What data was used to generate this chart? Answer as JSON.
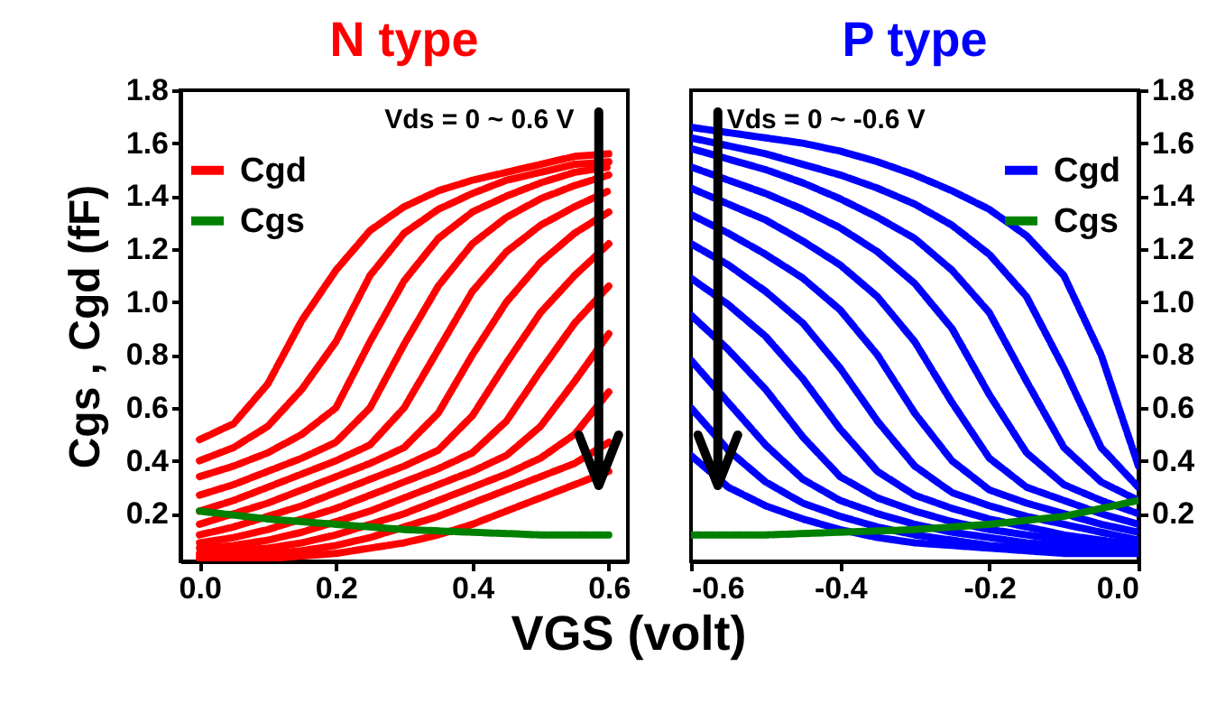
{
  "chart_data": [
    {
      "type": "line",
      "title": "N type",
      "xlabel": "VGS (volt)",
      "ylabel": "Cgs , Cgd (fF)",
      "annotations": [
        "Vds =  0 ~ 0.6 V"
      ],
      "legend": "top left",
      "line_style": "dashed",
      "xlim": [
        -0.028,
        0.628
      ],
      "ylim": [
        0.02,
        1.8
      ],
      "xticks": [
        {
          "value": 0,
          "label": "0.0"
        },
        0.2,
        0.4,
        0.6
      ],
      "yticks": [
        0.2,
        0.4,
        0.6,
        0.8,
        {
          "value": 1,
          "label": "1.0"
        },
        1.2,
        1.4,
        1.6,
        1.8
      ],
      "x": [
        0,
        0.05,
        0.1,
        0.15,
        0.2,
        0.25,
        0.3,
        0.35,
        0.4,
        0.45,
        0.5,
        0.55,
        0.6
      ],
      "series": [
        {
          "name": "Cgd",
          "color": "#ff0000",
          "values": [
            0.48,
            0.54,
            0.69,
            0.93,
            1.12,
            1.27,
            1.36,
            1.42,
            1.46,
            1.49,
            1.52,
            1.55,
            1.56
          ]
        },
        {
          "color": "#ff0000",
          "values": [
            0.4,
            0.45,
            0.53,
            0.67,
            0.85,
            1.1,
            1.26,
            1.35,
            1.41,
            1.46,
            1.49,
            1.52,
            1.53
          ]
        },
        {
          "color": "#ff0000",
          "values": [
            0.34,
            0.38,
            0.43,
            0.5,
            0.6,
            0.85,
            1.08,
            1.24,
            1.34,
            1.4,
            1.45,
            1.49,
            1.51
          ]
        },
        {
          "color": "#ff0000",
          "values": [
            0.27,
            0.31,
            0.36,
            0.41,
            0.47,
            0.6,
            0.84,
            1.06,
            1.22,
            1.32,
            1.39,
            1.44,
            1.48
          ]
        },
        {
          "color": "#ff0000",
          "values": [
            0.21,
            0.25,
            0.3,
            0.35,
            0.4,
            0.46,
            0.6,
            0.82,
            1.04,
            1.19,
            1.29,
            1.36,
            1.42
          ]
        },
        {
          "color": "#ff0000",
          "values": [
            0.16,
            0.2,
            0.24,
            0.29,
            0.34,
            0.39,
            0.45,
            0.58,
            0.8,
            1.0,
            1.15,
            1.26,
            1.34
          ]
        },
        {
          "color": "#ff0000",
          "values": [
            0.12,
            0.15,
            0.19,
            0.23,
            0.28,
            0.33,
            0.38,
            0.44,
            0.57,
            0.77,
            0.96,
            1.1,
            1.22
          ]
        },
        {
          "color": "#ff0000",
          "values": [
            0.09,
            0.11,
            0.14,
            0.18,
            0.22,
            0.27,
            0.32,
            0.37,
            0.43,
            0.55,
            0.74,
            0.92,
            1.06
          ]
        },
        {
          "color": "#ff0000",
          "values": [
            0.07,
            0.08,
            0.1,
            0.13,
            0.17,
            0.21,
            0.26,
            0.31,
            0.36,
            0.42,
            0.53,
            0.7,
            0.88
          ]
        },
        {
          "color": "#ff0000",
          "values": [
            0.05,
            0.06,
            0.07,
            0.09,
            0.12,
            0.16,
            0.2,
            0.25,
            0.3,
            0.35,
            0.41,
            0.5,
            0.66
          ]
        },
        {
          "color": "#ff0000",
          "values": [
            0.04,
            0.04,
            0.05,
            0.06,
            0.08,
            0.11,
            0.15,
            0.19,
            0.24,
            0.29,
            0.34,
            0.39,
            0.47
          ]
        },
        {
          "color": "#ff0000",
          "values": [
            0.03,
            0.03,
            0.03,
            0.04,
            0.05,
            0.07,
            0.09,
            0.12,
            0.16,
            0.21,
            0.26,
            0.31,
            0.36
          ]
        },
        {
          "name": "Cgs",
          "color": "#008000",
          "x": [
            0,
            0.1,
            0.2,
            0.3,
            0.4,
            0.5,
            0.6
          ],
          "values": [
            0.21,
            0.18,
            0.16,
            0.14,
            0.13,
            0.12,
            0.12
          ]
        }
      ]
    },
    {
      "type": "line",
      "title": "P type",
      "annotations": [
        "Vds =  0 ~ -0.6 V"
      ],
      "legend": "top right",
      "line_style": "dashed",
      "xlim": [
        -0.6,
        0.0
      ],
      "ylim": [
        0.02,
        1.8
      ],
      "xticks": [
        -0.6,
        -0.4,
        -0.2,
        {
          "value": 0,
          "label": "0.0"
        }
      ],
      "yticks": [
        0.2,
        0.4,
        0.6,
        0.8,
        {
          "value": 1,
          "label": "1.0"
        },
        1.2,
        1.4,
        1.6,
        1.8
      ],
      "x": [
        -0.6,
        -0.55,
        -0.5,
        -0.45,
        -0.4,
        -0.35,
        -0.3,
        -0.25,
        -0.2,
        -0.15,
        -0.1,
        -0.05,
        0
      ],
      "series": [
        {
          "name": "Cgd",
          "color": "#0000ff",
          "values": [
            1.66,
            1.64,
            1.62,
            1.6,
            1.57,
            1.53,
            1.48,
            1.42,
            1.35,
            1.25,
            1.1,
            0.8,
            0.38
          ]
        },
        {
          "color": "#0000ff",
          "values": [
            1.62,
            1.59,
            1.56,
            1.52,
            1.48,
            1.43,
            1.37,
            1.29,
            1.18,
            1.02,
            0.75,
            0.45,
            0.3
          ]
        },
        {
          "color": "#0000ff",
          "values": [
            1.58,
            1.54,
            1.5,
            1.45,
            1.39,
            1.32,
            1.24,
            1.12,
            0.96,
            0.7,
            0.45,
            0.32,
            0.25
          ]
        },
        {
          "color": "#0000ff",
          "values": [
            1.51,
            1.46,
            1.41,
            1.35,
            1.28,
            1.19,
            1.07,
            0.9,
            0.65,
            0.43,
            0.31,
            0.25,
            0.2
          ]
        },
        {
          "color": "#0000ff",
          "values": [
            1.43,
            1.37,
            1.31,
            1.23,
            1.14,
            1.02,
            0.85,
            0.62,
            0.41,
            0.3,
            0.25,
            0.2,
            0.16
          ]
        },
        {
          "color": "#0000ff",
          "values": [
            1.33,
            1.26,
            1.18,
            1.09,
            0.97,
            0.8,
            0.58,
            0.4,
            0.29,
            0.24,
            0.2,
            0.16,
            0.13
          ]
        },
        {
          "color": "#0000ff",
          "values": [
            1.22,
            1.14,
            1.04,
            0.92,
            0.75,
            0.55,
            0.38,
            0.28,
            0.23,
            0.19,
            0.16,
            0.13,
            0.1
          ]
        },
        {
          "color": "#0000ff",
          "values": [
            1.09,
            0.99,
            0.87,
            0.71,
            0.52,
            0.36,
            0.27,
            0.22,
            0.18,
            0.15,
            0.12,
            0.1,
            0.08
          ]
        },
        {
          "color": "#0000ff",
          "values": [
            0.95,
            0.82,
            0.67,
            0.49,
            0.34,
            0.26,
            0.21,
            0.17,
            0.14,
            0.12,
            0.1,
            0.08,
            0.07
          ]
        },
        {
          "color": "#0000ff",
          "values": [
            0.78,
            0.62,
            0.46,
            0.33,
            0.25,
            0.2,
            0.16,
            0.13,
            0.11,
            0.09,
            0.08,
            0.07,
            0.06
          ]
        },
        {
          "color": "#0000ff",
          "values": [
            0.6,
            0.44,
            0.32,
            0.24,
            0.19,
            0.15,
            0.12,
            0.1,
            0.08,
            0.07,
            0.06,
            0.06,
            0.05
          ]
        },
        {
          "color": "#0000ff",
          "values": [
            0.42,
            0.3,
            0.23,
            0.18,
            0.14,
            0.11,
            0.09,
            0.08,
            0.07,
            0.06,
            0.05,
            0.05,
            0.05
          ]
        },
        {
          "name": "Cgs",
          "color": "#008000",
          "x": [
            -0.6,
            -0.5,
            -0.4,
            -0.3,
            -0.2,
            -0.1,
            0
          ],
          "values": [
            0.12,
            0.12,
            0.13,
            0.14,
            0.16,
            0.19,
            0.25
          ]
        }
      ]
    }
  ]
}
